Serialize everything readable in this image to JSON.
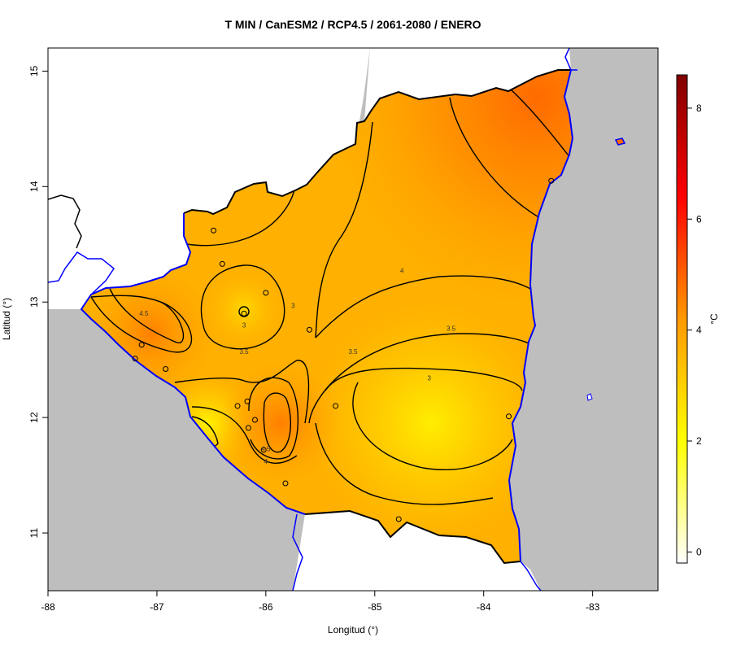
{
  "chart_data": {
    "type": "heatmap",
    "title": "T MIN / CanESM2 / RCP4.5 / 2061-2080 / ENERO",
    "xlabel": "Longitud (°)",
    "ylabel": "Latitud (°)",
    "xlim": [
      -88,
      -82.4
    ],
    "ylim": [
      10.5,
      15.2
    ],
    "x_ticks": [
      {
        "value": -88,
        "label": "-88"
      },
      {
        "value": -87,
        "label": "-87"
      },
      {
        "value": -86,
        "label": "-86"
      },
      {
        "value": -85,
        "label": "-85"
      },
      {
        "value": -84,
        "label": "-84"
      },
      {
        "value": -83,
        "label": "-83"
      }
    ],
    "y_ticks": [
      {
        "value": 11,
        "label": "11"
      },
      {
        "value": 12,
        "label": "12"
      },
      {
        "value": 13,
        "label": "13"
      },
      {
        "value": 14,
        "label": "14"
      },
      {
        "value": 15,
        "label": "15"
      }
    ],
    "colorbar": {
      "label": "°C",
      "range": [
        -0.2,
        8.6
      ],
      "ticks": [
        {
          "value": 0,
          "label": "0"
        },
        {
          "value": 2,
          "label": "2"
        },
        {
          "value": 4,
          "label": "4"
        },
        {
          "value": 6,
          "label": "6"
        },
        {
          "value": 8,
          "label": "8"
        }
      ],
      "colors": [
        "#ffffff",
        "#ffff00",
        "#ff9900",
        "#ff0000",
        "#800000"
      ]
    },
    "contour_levels": [
      {
        "value": 3,
        "label": "3"
      },
      {
        "value": 3.5,
        "label": "3.5"
      },
      {
        "value": 4,
        "label": "4"
      },
      {
        "value": 4.5,
        "label": "4.5"
      }
    ],
    "stations": [
      {
        "lon": -86.48,
        "lat": 13.62
      },
      {
        "lon": -86.4,
        "lat": 13.33
      },
      {
        "lon": -86.2,
        "lat": 12.9
      },
      {
        "lon": -86.0,
        "lat": 13.08
      },
      {
        "lon": -85.6,
        "lat": 12.76
      },
      {
        "lon": -87.14,
        "lat": 12.63
      },
      {
        "lon": -87.2,
        "lat": 12.51
      },
      {
        "lon": -86.92,
        "lat": 12.42
      },
      {
        "lon": -86.26,
        "lat": 12.1
      },
      {
        "lon": -86.17,
        "lat": 12.14
      },
      {
        "lon": -86.1,
        "lat": 11.98
      },
      {
        "lon": -86.16,
        "lat": 11.91
      },
      {
        "lon": -86.02,
        "lat": 11.72
      },
      {
        "lon": -85.82,
        "lat": 11.43
      },
      {
        "lon": -85.36,
        "lat": 12.1
      },
      {
        "lon": -84.78,
        "lat": 11.12
      },
      {
        "lon": -83.77,
        "lat": 12.01
      },
      {
        "lon": -83.38,
        "lat": 14.05
      }
    ]
  }
}
